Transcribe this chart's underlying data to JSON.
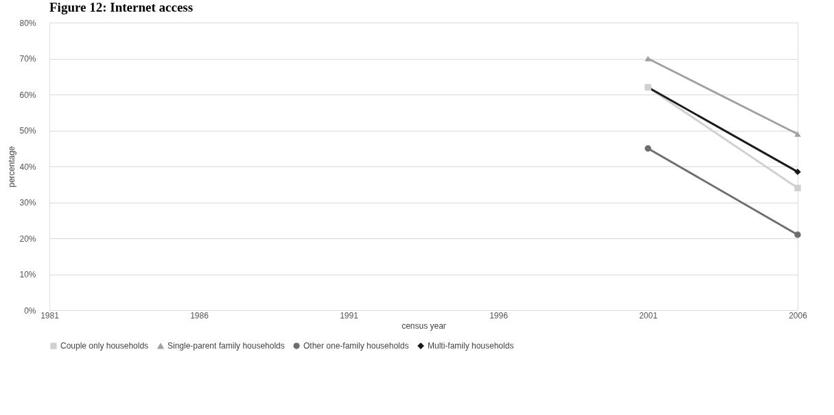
{
  "chart_data": {
    "type": "line",
    "title": "Figure 12: Internet access",
    "xlabel": "census year",
    "ylabel": "percentage",
    "categories": [
      "1981",
      "1986",
      "1991",
      "1996",
      "2001",
      "2006"
    ],
    "series": [
      {
        "name": "Couple only households",
        "color": "#d0d0d0",
        "marker": "square",
        "values": [
          null,
          null,
          null,
          null,
          62,
          34
        ]
      },
      {
        "name": "Single-parent family households",
        "color": "#a0a0a0",
        "marker": "triangle",
        "values": [
          null,
          null,
          null,
          null,
          70,
          49
        ]
      },
      {
        "name": "Other one-family households",
        "color": "#6e6e6e",
        "marker": "circle",
        "values": [
          null,
          null,
          null,
          null,
          45,
          21
        ]
      },
      {
        "name": "Multi-family households",
        "color": "#1a1a1a",
        "marker": "diamond",
        "values": [
          null,
          null,
          null,
          null,
          62,
          38.5
        ]
      }
    ],
    "ylim": [
      0,
      80
    ],
    "yticks": [
      {
        "value": 0,
        "label": "0%"
      },
      {
        "value": 10,
        "label": "10%"
      },
      {
        "value": 20,
        "label": "20%"
      },
      {
        "value": 30,
        "label": "30%"
      },
      {
        "value": 40,
        "label": "40%"
      },
      {
        "value": 50,
        "label": "50%"
      },
      {
        "value": 60,
        "label": "60%"
      },
      {
        "value": 70,
        "label": "70%"
      },
      {
        "value": 80,
        "label": "80%"
      }
    ],
    "grid": "y",
    "legend": "bottom",
    "line_style": "solid"
  }
}
